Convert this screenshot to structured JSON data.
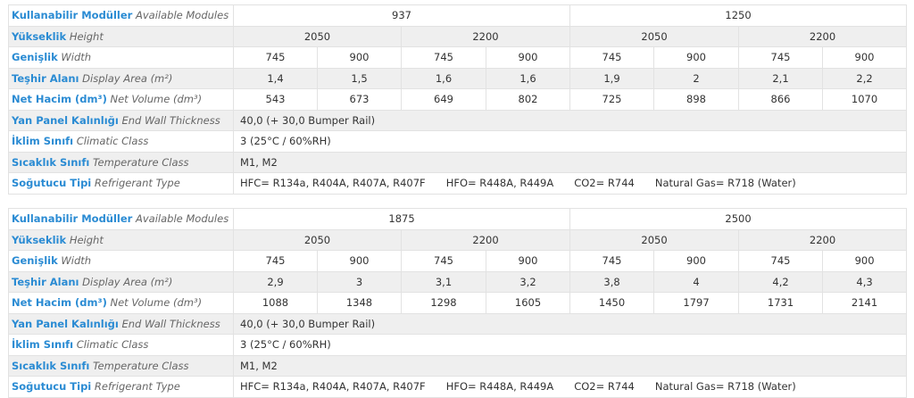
{
  "tables": [
    {
      "modules": [
        "937",
        "1250"
      ],
      "heights": [
        "2050",
        "2200",
        "2050",
        "2200"
      ],
      "widths": [
        "745",
        "900",
        "745",
        "900",
        "745",
        "900",
        "745",
        "900"
      ],
      "display_area": [
        "1,4",
        "1,5",
        "1,6",
        "1,6",
        "1,9",
        "2",
        "2,1",
        "2,2"
      ],
      "net_volume": [
        "543",
        "673",
        "649",
        "802",
        "725",
        "898",
        "866",
        "1070"
      ],
      "end_wall": "40,0 (+ 30,0 Bumper Rail)",
      "climatic": "3 (25°C / 60%RH)",
      "temperature": "M1, M2",
      "refrigerants": [
        "HFC= R134a, R404A, R407A, R407F",
        "HFO= R448A, R449A",
        "CO2= R744",
        "Natural Gas= R718 (Water)"
      ]
    },
    {
      "modules": [
        "1875",
        "2500"
      ],
      "heights": [
        "2050",
        "2200",
        "2050",
        "2200"
      ],
      "widths": [
        "745",
        "900",
        "745",
        "900",
        "745",
        "900",
        "745",
        "900"
      ],
      "display_area": [
        "2,9",
        "3",
        "3,1",
        "3,2",
        "3,8",
        "4",
        "4,2",
        "4,3"
      ],
      "net_volume": [
        "1088",
        "1348",
        "1298",
        "1605",
        "1450",
        "1797",
        "1731",
        "2141"
      ],
      "end_wall": "40,0 (+ 30,0 Bumper Rail)",
      "climatic": "3 (25°C / 60%RH)",
      "temperature": "M1, M2",
      "refrigerants": [
        "HFC= R134a, R404A, R407A, R407F",
        "HFO= R448A, R449A",
        "CO2= R744",
        "Natural Gas= R718 (Water)"
      ]
    }
  ],
  "labels": {
    "modules": {
      "tr": "Kullanabilir Modüller",
      "en": "Available Modules"
    },
    "height": {
      "tr": "Yükseklik",
      "en": "Height"
    },
    "width": {
      "tr": "Genişlik",
      "en": "Width"
    },
    "display_area": {
      "tr": "Teşhir Alanı",
      "en": "Display Area (m²)"
    },
    "net_volume": {
      "tr": "Net Hacim (dm³)",
      "en": "Net Volume (dm³)"
    },
    "end_wall": {
      "tr": "Yan Panel Kalınlığı",
      "en": "End Wall Thickness"
    },
    "climatic": {
      "tr": "İklim Sınıfı",
      "en": "Climatic Class"
    },
    "temperature": {
      "tr": "Sıcaklık Sınıfı",
      "en": "Temperature Class"
    },
    "refrigerant": {
      "tr": "Soğutucu Tipi",
      "en": "Refrigerant Type"
    }
  }
}
